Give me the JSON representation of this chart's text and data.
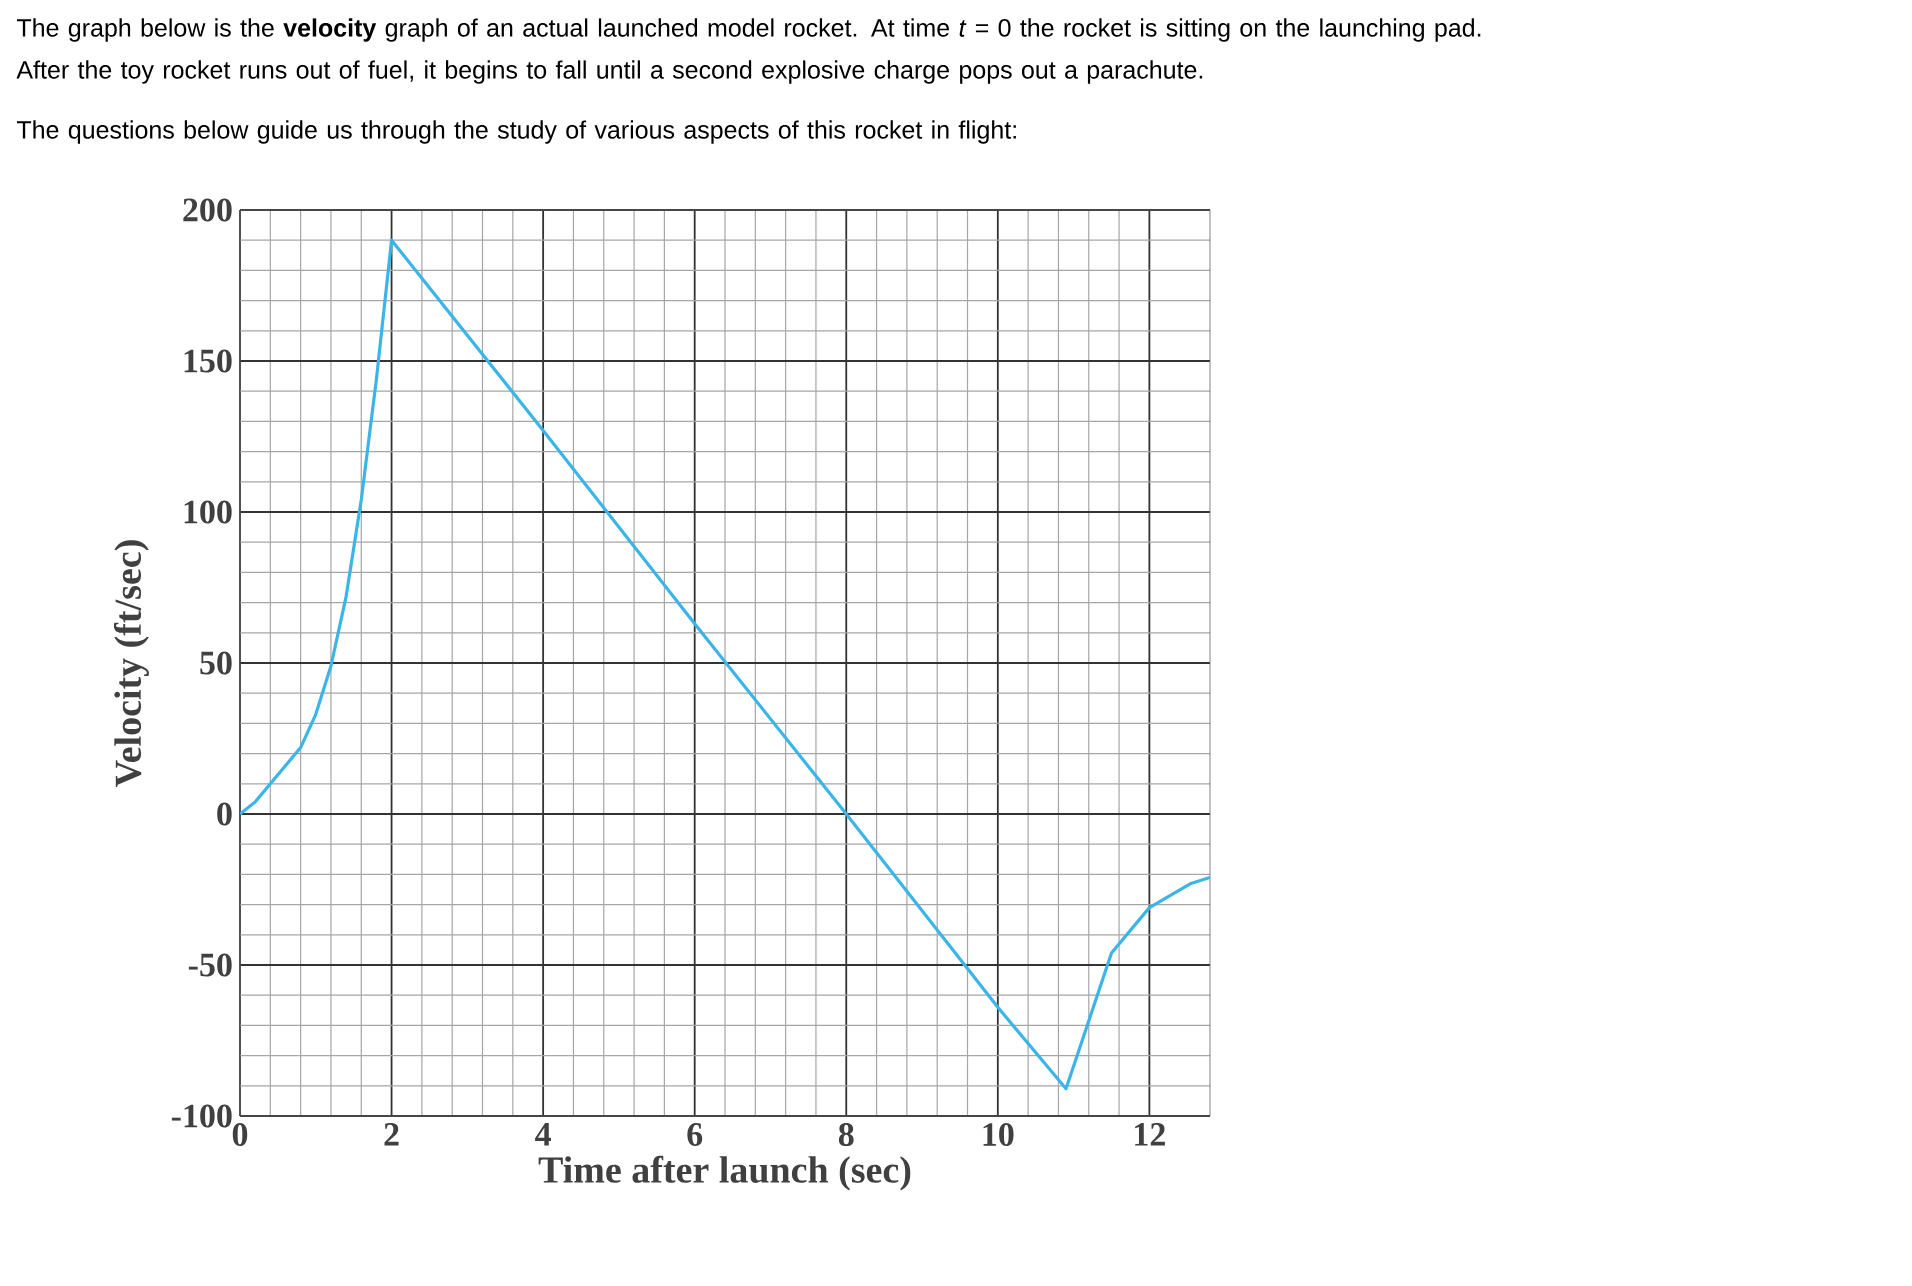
{
  "chart_data": {
    "type": "line",
    "title": "The graph below is the **velocity** graph of an actual launched model rocket. At time *t* = 0 the rocket is sitting on the launching pad. After the toy rocket runs out of fuel, it begins to fall until a second explosive charge pops out a parachute.",
    "subtitle": "The questions below guide us through the study of various aspects of this rocket in flight:",
    "xlabel": "Time after launch (sec)",
    "ylabel": "Velocity (ft/sec)",
    "x": [
      0,
      0.2,
      0.4,
      0.8,
      1.0,
      1.2,
      1.4,
      1.6,
      1.8,
      2,
      4,
      6,
      8,
      10,
      10.9,
      11.14,
      11.5,
      12.0,
      12.55,
      12.8
    ],
    "values": [
      0,
      4,
      10,
      22,
      33,
      49,
      72,
      104,
      144,
      190,
      127,
      63,
      0,
      -64,
      -91,
      -73,
      -46,
      -31,
      -23,
      -21
    ],
    "color": "#3bb5e8",
    "line_style": "solid",
    "xlim": [
      0,
      12.8
    ],
    "ylim": [
      -100,
      200
    ],
    "xticks": [
      0,
      2,
      4,
      6,
      8,
      10,
      12
    ],
    "yticks": [
      -100,
      -50,
      0,
      50,
      100,
      150,
      200
    ],
    "grid": true
  }
}
